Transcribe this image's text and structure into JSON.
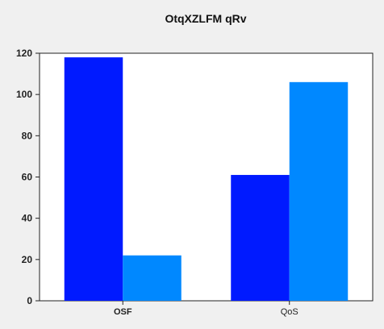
{
  "chart_data": {
    "type": "bar",
    "title": "OtqXZLFM  qRv",
    "xlabel": "",
    "ylabel": "",
    "categories": [
      "OSF",
      "QoS"
    ],
    "series": [
      {
        "values": [
          118,
          61
        ],
        "color": "#001aff"
      },
      {
        "values": [
          22,
          106
        ],
        "color": "#0088ff"
      }
    ],
    "ylim": [
      0,
      120
    ],
    "yticks": [
      0,
      20,
      40,
      60,
      80,
      100,
      120
    ],
    "ytick_labels": [
      "0",
      "20",
      "40",
      "60",
      "80",
      "100",
      "120"
    ],
    "grid": false,
    "legend": "none",
    "plot_background": "#ffffff",
    "page_background": "#f0f0f0"
  }
}
